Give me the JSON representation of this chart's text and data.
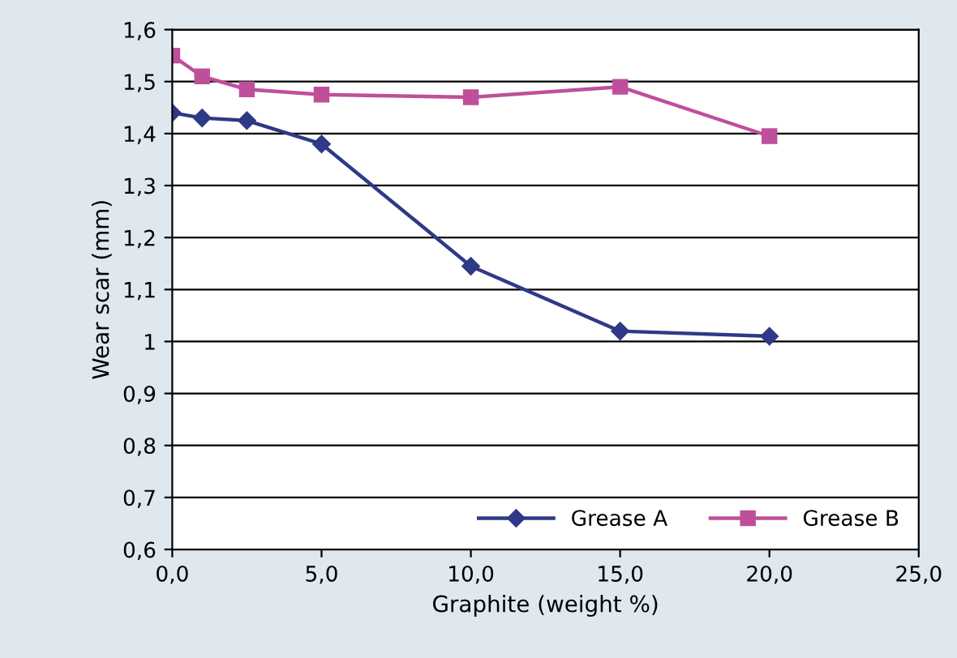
{
  "chart_data": {
    "type": "line",
    "xlabel": "Graphite (weight %)",
    "ylabel": "Wear scar (mm)",
    "series": [
      {
        "name": "Grease A",
        "color": "#2e3a87",
        "marker": "diamond",
        "x": [
          0,
          1,
          2.5,
          5,
          10,
          15,
          20
        ],
        "values": [
          1.44,
          1.43,
          1.425,
          1.38,
          1.145,
          1.02,
          1.01
        ]
      },
      {
        "name": "Grease B",
        "color": "#bf4f9b",
        "marker": "square",
        "x": [
          0,
          1,
          2.5,
          5,
          10,
          15,
          20
        ],
        "values": [
          1.55,
          1.51,
          1.485,
          1.475,
          1.47,
          1.49,
          1.395
        ]
      }
    ],
    "xlim": [
      0,
      25
    ],
    "xticks": [
      {
        "value": 0,
        "label": "0,0"
      },
      {
        "value": 5,
        "label": "5,0"
      },
      {
        "value": 10,
        "label": "10,0"
      },
      {
        "value": 15,
        "label": "15,0"
      },
      {
        "value": 20,
        "label": "20,0"
      },
      {
        "value": 25,
        "label": "25,0"
      }
    ],
    "ylim": [
      0.6,
      1.6
    ],
    "yticks": [
      {
        "value": 0.6,
        "label": "0,6"
      },
      {
        "value": 0.7,
        "label": "0,7"
      },
      {
        "value": 0.8,
        "label": "0,8"
      },
      {
        "value": 0.9,
        "label": "0,9"
      },
      {
        "value": 1,
        "label": "1"
      },
      {
        "value": 1.1,
        "label": "1,1"
      },
      {
        "value": 1.2,
        "label": "1,2"
      },
      {
        "value": 1.3,
        "label": "1,3"
      },
      {
        "value": 1.4,
        "label": "1,4"
      },
      {
        "value": 1.5,
        "label": "1,5"
      },
      {
        "value": 1.6,
        "label": "1,6"
      }
    ],
    "grid": "y",
    "legend": "bottom right",
    "line_style": "solid"
  }
}
